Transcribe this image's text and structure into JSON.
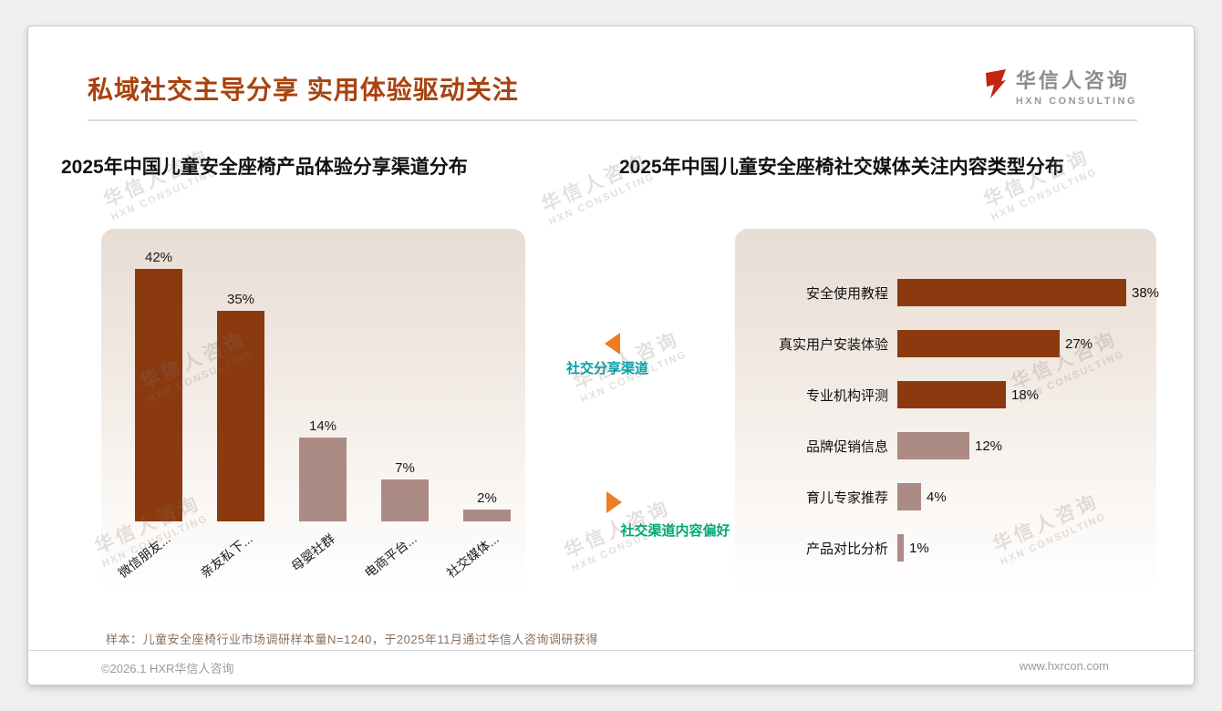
{
  "page": {
    "title": "私域社交主导分享 实用体验驱动关注",
    "logo": {
      "name": "华信人咨询",
      "tagline": "HXN CONSULTING"
    },
    "note": "样本：儿童安全座椅行业市场调研样本量N=1240，于2025年11月通过华信人咨询调研获得",
    "footer": {
      "left": "©2026.1 HXR华信人咨询",
      "right": "www.hxrcon.com"
    }
  },
  "watermark": {
    "line1": "华信人咨询",
    "line2": "HXN CONSULTING"
  },
  "annotations": {
    "left_label": "社交分享渠道",
    "right_label": "社交渠道内容偏好"
  },
  "theme": {
    "title_color": "#A8430F",
    "bar_dark": "#8B3A10",
    "bar_light": "#AB8B84",
    "arrow_orange": "#EE7D22",
    "label_teal_left": "#00A0A8",
    "label_teal_right": "#00A878",
    "plot_bg_top": "#E8DDD4",
    "plot_bg_bottom": "#FFFFFF",
    "logo_red": "#C3250F"
  },
  "chart_data": [
    {
      "type": "bar",
      "orientation": "vertical",
      "title": "2025年中国儿童安全座椅产品体验分享渠道分布",
      "categories": [
        "微信朋友...",
        "亲友私下...",
        "母婴社群",
        "电商平台...",
        "社交媒体..."
      ],
      "values": [
        42,
        35,
        14,
        7,
        2
      ],
      "value_labels": [
        "42%",
        "35%",
        "14%",
        "7%",
        "2%"
      ],
      "unit": "%",
      "colors": [
        "#8B3A10",
        "#8B3A10",
        "#AB8B84",
        "#AB8B84",
        "#AB8B84"
      ],
      "ylim": [
        0,
        45
      ],
      "grid": false,
      "legend": false
    },
    {
      "type": "bar",
      "orientation": "horizontal",
      "title": "2025年中国儿童安全座椅社交媒体关注内容类型分布",
      "categories": [
        "安全使用教程",
        "真实用户安装体验",
        "专业机构评测",
        "品牌促销信息",
        "育儿专家推荐",
        "产品对比分析"
      ],
      "values": [
        38,
        27,
        18,
        12,
        4,
        1
      ],
      "value_labels": [
        "38%",
        "27%",
        "18%",
        "12%",
        "4%",
        "1%"
      ],
      "unit": "%",
      "colors": [
        "#8B3A10",
        "#8B3A10",
        "#8B3A10",
        "#AB8B84",
        "#AB8B84",
        "#AB8B84"
      ],
      "xlim": [
        0,
        40
      ],
      "grid": false,
      "legend": false
    }
  ]
}
